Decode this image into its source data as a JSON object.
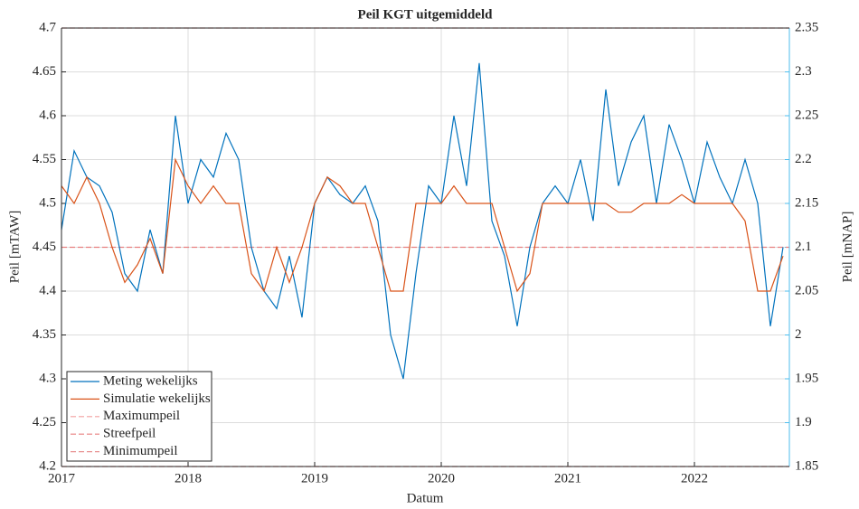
{
  "chart_data": {
    "type": "line",
    "title": "Peil KGT uitgemiddeld",
    "xlabel": "Datum",
    "ylabel": "Peil [mTAW]",
    "y2label": "Peil [mNAP]",
    "x": [
      2017.0,
      2017.1,
      2017.2,
      2017.3,
      2017.4,
      2017.5,
      2017.6,
      2017.7,
      2017.8,
      2017.9,
      2018.0,
      2018.1,
      2018.2,
      2018.3,
      2018.4,
      2018.5,
      2018.6,
      2018.7,
      2018.8,
      2018.9,
      2019.0,
      2019.1,
      2019.2,
      2019.3,
      2019.4,
      2019.5,
      2019.6,
      2019.7,
      2019.8,
      2019.9,
      2020.0,
      2020.1,
      2020.2,
      2020.3,
      2020.4,
      2020.5,
      2020.6,
      2020.7,
      2020.8,
      2020.9,
      2021.0,
      2021.1,
      2021.2,
      2021.3,
      2021.4,
      2021.5,
      2021.6,
      2021.7,
      2021.8,
      2021.9,
      2022.0,
      2022.1,
      2022.2,
      2022.3,
      2022.4,
      2022.5,
      2022.6,
      2022.7
    ],
    "series": [
      {
        "name": "Meting wekelijks",
        "color": "#0072bd",
        "values": [
          4.47,
          4.56,
          4.53,
          4.52,
          4.49,
          4.42,
          4.4,
          4.47,
          4.42,
          4.6,
          4.5,
          4.55,
          4.53,
          4.58,
          4.55,
          4.45,
          4.4,
          4.38,
          4.44,
          4.37,
          4.5,
          4.53,
          4.51,
          4.5,
          4.52,
          4.48,
          4.35,
          4.3,
          4.42,
          4.52,
          4.5,
          4.6,
          4.52,
          4.66,
          4.48,
          4.44,
          4.36,
          4.45,
          4.5,
          4.52,
          4.5,
          4.55,
          4.48,
          4.63,
          4.52,
          4.57,
          4.6,
          4.5,
          4.59,
          4.55,
          4.5,
          4.57,
          4.53,
          4.5,
          4.55,
          4.5,
          4.36,
          4.45
        ]
      },
      {
        "name": "Simulatie wekelijks",
        "color": "#d95319",
        "values": [
          4.52,
          4.5,
          4.53,
          4.5,
          4.45,
          4.41,
          4.43,
          4.46,
          4.42,
          4.55,
          4.52,
          4.5,
          4.52,
          4.5,
          4.5,
          4.42,
          4.4,
          4.45,
          4.41,
          4.45,
          4.5,
          4.53,
          4.52,
          4.5,
          4.5,
          4.45,
          4.4,
          4.4,
          4.5,
          4.5,
          4.5,
          4.52,
          4.5,
          4.5,
          4.5,
          4.45,
          4.4,
          4.42,
          4.5,
          4.5,
          4.5,
          4.5,
          4.5,
          4.5,
          4.49,
          4.49,
          4.5,
          4.5,
          4.5,
          4.51,
          4.5,
          4.5,
          4.5,
          4.5,
          4.48,
          4.4,
          4.4,
          4.44
        ]
      }
    ],
    "reference_lines": [
      {
        "name": "Maximumpeil",
        "color": "#f4a0a0",
        "value": 4.7
      },
      {
        "name": "Streefpeil",
        "color": "#e88080",
        "value": 4.45
      },
      {
        "name": "Minimumpeil",
        "color": "#e89090",
        "value": 4.2
      }
    ],
    "xlim": [
      2017,
      2022.75
    ],
    "xticks": [
      2017,
      2018,
      2019,
      2020,
      2021,
      2022
    ],
    "ylim": [
      4.2,
      4.7
    ],
    "yticks": [
      4.2,
      4.25,
      4.3,
      4.35,
      4.4,
      4.45,
      4.5,
      4.55,
      4.6,
      4.65,
      4.7
    ],
    "y2lim": [
      1.85,
      2.35
    ],
    "y2ticks": [
      1.85,
      1.9,
      1.95,
      2,
      2.05,
      2.1,
      2.15,
      2.2,
      2.25,
      2.3,
      2.35
    ],
    "y2color": "#4dbeee",
    "grid": true,
    "legend": "lower left"
  }
}
